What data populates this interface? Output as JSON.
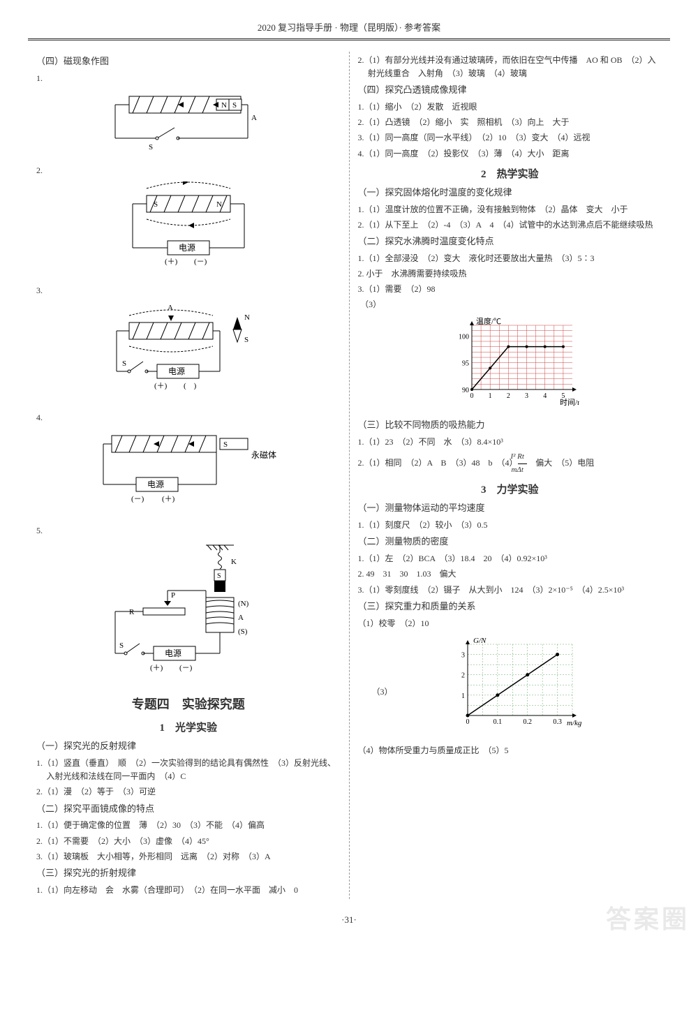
{
  "header": "2020 复习指导手册 · 物理（昆明版）· 参考答案",
  "left": {
    "s4_title": "（四）磁现象作图",
    "n1": "1.",
    "n2": "2.",
    "n3": "3.",
    "n4": "4.",
    "n5": "5.",
    "diag1": {
      "N": "N",
      "S": "S",
      "Sw": "S",
      "A": "A"
    },
    "diag2": {
      "S": "S",
      "N": "N",
      "psu": "电源",
      "plus": "(＋)",
      "minus": "(－)"
    },
    "diag3": {
      "A": "A",
      "N": "N",
      "S": "S",
      "Sw": "S",
      "psu": "电源",
      "plus": "(＋)",
      "minus": "(　)"
    },
    "diag4": {
      "S": "S",
      "perm": "永磁体",
      "psu": "电源",
      "plus": "(＋)",
      "minus": "(－)"
    },
    "diag5": {
      "K": "K",
      "S": "S",
      "R": "R",
      "P": "P",
      "N": "(N)",
      "A": "A",
      "Sout": "(S)",
      "psu": "电源",
      "plus": "(＋)",
      "minus": "(－)",
      "Sw": "S"
    },
    "topic": "专题四　实验探究题",
    "exp1": "1　光学实验",
    "p1_title": "（一）探究光的反射规律",
    "p1_1": "1.（1）竖直（垂直）　顺　（2）一次实验得到的结论具有偶然性　（3）反射光线、入射光线和法线在同一平面内　（4）C",
    "p1_2": "2.（1）漫　（2）等于　（3）可逆",
    "p2_title": "（二）探究平面镜成像的特点",
    "p2_1": "1.（1）便于确定像的位置　薄　（2）30　（3）不能　（4）偏高",
    "p2_2": "2.（1）不需要　（2）大小　（3）虚像　（4）45°",
    "p2_3": "3.（1）玻璃板　大小相等，外形相同　远离　（2）对称　（3）A",
    "p3_title": "（三）探究光的折射规律",
    "p3_1": "1.（1）向左移动　会　水雾（合理即可）　（2）在同一水平面　减小　0"
  },
  "right": {
    "r1": "2.（1）有部分光线并没有通过玻璃砖，而依旧在空气中传播　AO 和 OB　（2）入射光线重合　入射角　（3）玻璃　（4）玻璃",
    "p4_title": "（四）探究凸透镜成像规律",
    "p4_1": "1.（1）缩小　（2）发散　近视眼",
    "p4_2": "2.（1）凸透镜　（2）缩小　实　照相机　（3）向上　大于",
    "p4_3": "3.（1）同一高度（同一水平线）　（2）10　（3）变大　（4）远视",
    "p4_4": "4.（1）同一高度　（2）投影仪　（3）薄　（4）大小　距离",
    "exp2": "2　热学实验",
    "q1_title": "（一）探究固体熔化时温度的变化规律",
    "q1_1": "1.（1）温度计放的位置不正确，没有接触到物体　（2）晶体　变大　小于",
    "q1_2": "2.（1）从下至上　（2）-4　（3）A　4　（4）试管中的水达到沸点后不能继续吸热",
    "q2_title": "（二）探究水沸腾时温度变化特点",
    "q2_1": "1.（1）全部浸没　（2）变大　液化时还要放出大量热　（3）5∶3",
    "q2_2": "2. 小于　水沸腾需要持续吸热",
    "q2_3a": "3.（1）需要　（2）98",
    "q2_3b": "（3）",
    "chart1": {
      "ylabel": "温度/℃",
      "xlabel": "时间/min",
      "yticks": [
        "90",
        "95",
        "100"
      ],
      "xticks": [
        "0",
        "1",
        "2",
        "3",
        "4",
        "5"
      ],
      "points": [
        [
          0,
          90
        ],
        [
          1,
          94
        ],
        [
          2,
          98
        ],
        [
          3,
          98
        ],
        [
          4,
          98
        ],
        [
          5,
          98
        ]
      ],
      "ylim": [
        90,
        102
      ],
      "xlim": [
        0,
        5.5
      ],
      "grid_color": "#c44",
      "line_color": "#000"
    },
    "q3_title": "（三）比较不同物质的吸热能力",
    "q3_1": "1.（1）23　（2）不同　水　（3）8.4×10³",
    "q3_2a": "2.（1）相同　（2）A　B　（3）48　b　（4）",
    "q3_2frac_top": "I² Rt",
    "q3_2frac_bot": "mΔt",
    "q3_2b": "　偏大　（5）电阻",
    "exp3": "3　力学实验",
    "m1_title": "（一）测量物体运动的平均速度",
    "m1_1": "1.（1）刻度尺　（2）较小　（3）0.5",
    "m2_title": "（二）测量物质的密度",
    "m2_1": "1.（1）左　（2）BCA　（3）18.4　20　（4）0.92×10³",
    "m2_2": "2. 49　31　30　1.03　偏大",
    "m2_3": "3.（1）零刻度线　（2）镊子　从大到小　124　（3）2×10⁻⁵　（4）2.5×10³",
    "m3_title": "（三）探究重力和质量的关系",
    "m3_1": "（1）校零　（2）10",
    "chart2": {
      "ylabel": "G/N",
      "xlabel": "m/kg",
      "yticks": [
        "1",
        "2",
        "3"
      ],
      "xticks": [
        "0",
        "0.1",
        "0.2",
        "0.3"
      ],
      "points": [
        [
          0,
          0
        ],
        [
          0.1,
          1
        ],
        [
          0.2,
          2
        ],
        [
          0.3,
          3
        ]
      ],
      "ylim": [
        0,
        3.5
      ],
      "xlim": [
        0,
        0.35
      ],
      "grid_color": "#6a6",
      "line_color": "#000"
    },
    "m3_3": "（3）",
    "m3_4": "（4）物体所受重力与质量成正比　（5）5"
  },
  "page_num": "·31·",
  "watermark": "答案圈"
}
